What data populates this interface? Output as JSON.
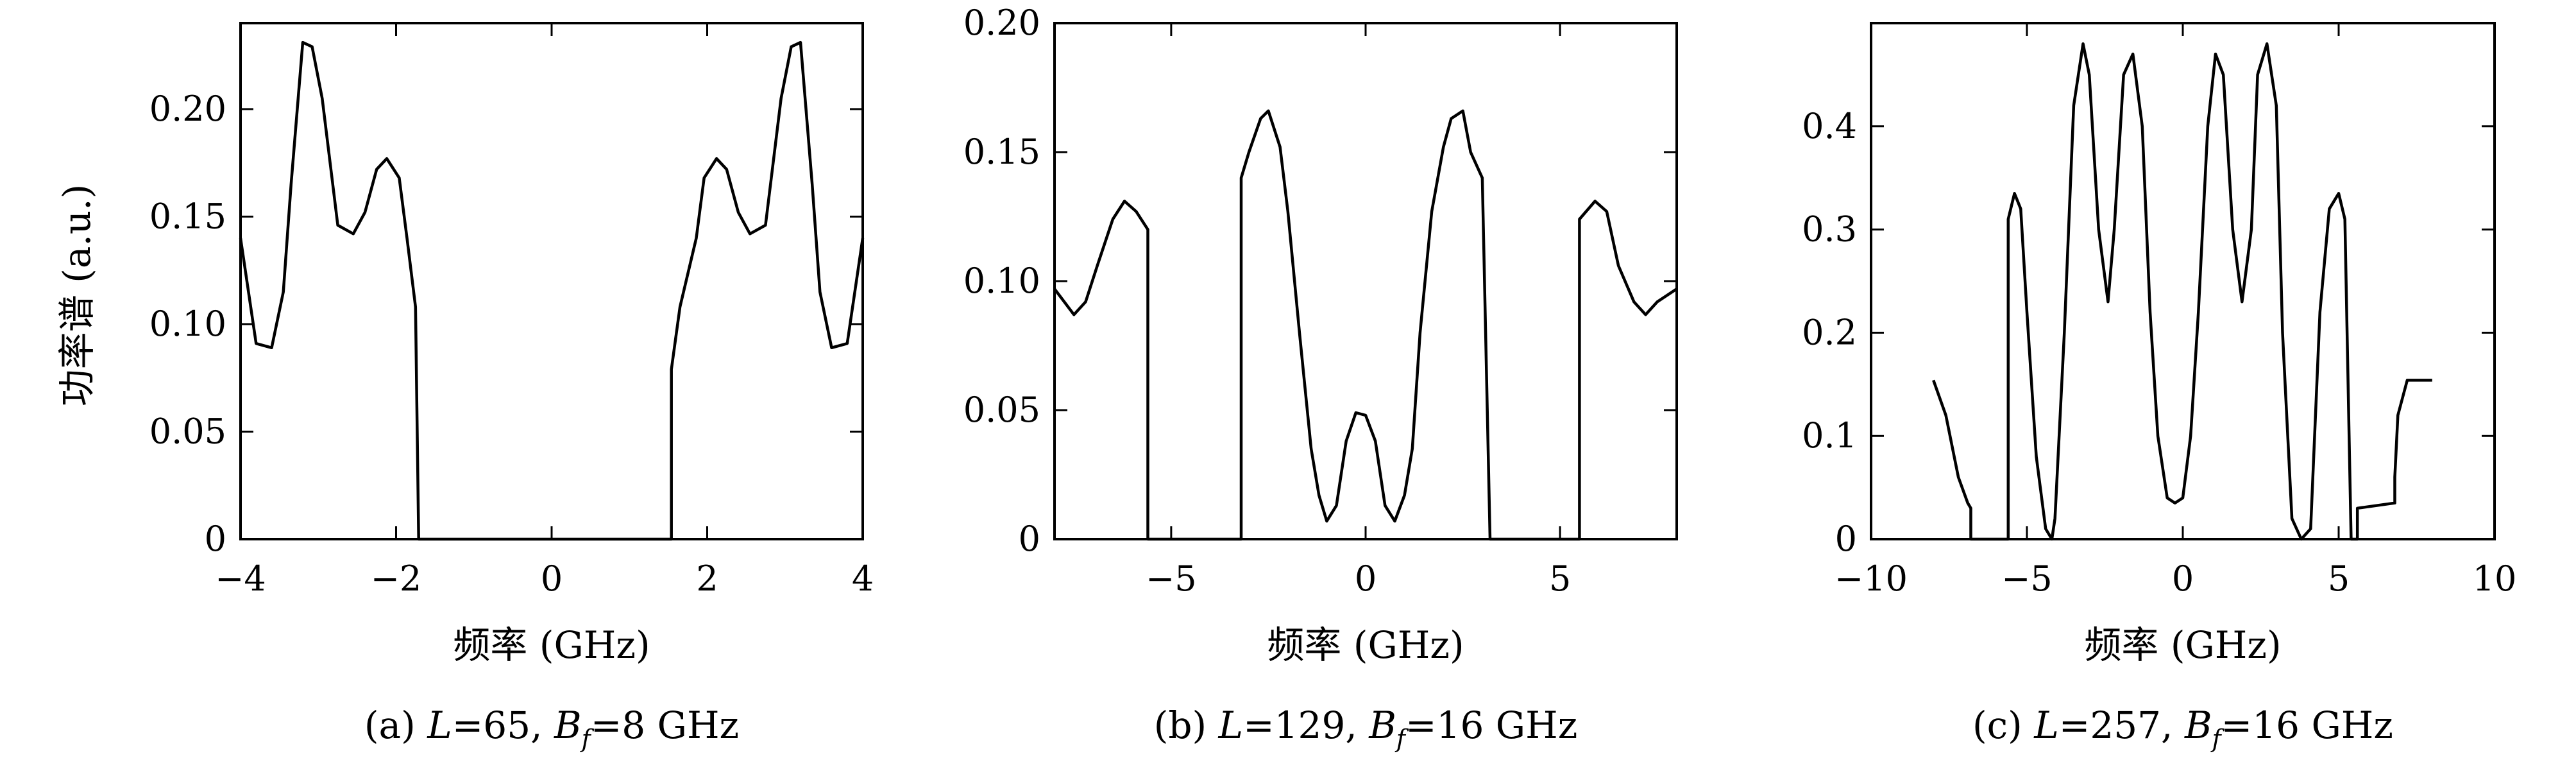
{
  "figure": {
    "ylabel": "功率谱 (a.u.)",
    "xlabel": "频率 (GHz)"
  },
  "chart_data": [
    {
      "type": "line",
      "caption_prefix": "(a) ",
      "caption_L": "L",
      "caption_mid": "=65, ",
      "caption_B": "B",
      "caption_sub": "f",
      "caption_tail": "=8 GHz",
      "xlabel": "频率 (GHz)",
      "ylabel": "功率谱 (a.u.)",
      "xlim": [
        -4,
        4
      ],
      "ylim": [
        0,
        0.24
      ],
      "xticks": [
        -4,
        -2,
        0,
        2,
        4
      ],
      "xtick_labels": [
        "−4",
        "−2",
        "0",
        "2",
        "4"
      ],
      "yticks": [
        0,
        0.05,
        0.1,
        0.15,
        0.2
      ],
      "ytick_labels": [
        "0",
        "0.05",
        "0.10",
        "0.15",
        "0.20"
      ],
      "grid": false,
      "series": [
        {
          "x": [
            -4.0,
            -3.8,
            -3.6,
            -3.45,
            -3.35,
            -3.2,
            -3.08,
            -2.95,
            -2.75,
            -2.55,
            -2.4,
            -2.25,
            -2.12,
            -1.96,
            -1.86,
            -1.75,
            -1.71,
            -1.71,
            1.54,
            1.54,
            1.65,
            1.86,
            1.96,
            2.12,
            2.25,
            2.4,
            2.55,
            2.75,
            2.95,
            3.08,
            3.2,
            3.35,
            3.45,
            3.6,
            3.8,
            4.0
          ],
          "y": [
            0.14,
            0.091,
            0.089,
            0.115,
            0.165,
            0.231,
            0.229,
            0.205,
            0.146,
            0.142,
            0.152,
            0.172,
            0.177,
            0.168,
            0.14,
            0.108,
            0.0,
            0.0,
            0.0,
            0.079,
            0.108,
            0.14,
            0.168,
            0.177,
            0.172,
            0.152,
            0.142,
            0.146,
            0.205,
            0.229,
            0.231,
            0.165,
            0.115,
            0.089,
            0.091,
            0.14
          ]
        }
      ]
    },
    {
      "type": "line",
      "caption_prefix": "(b) ",
      "caption_L": "L",
      "caption_mid": "=129, ",
      "caption_B": "B",
      "caption_sub": "f",
      "caption_tail": "=16 GHz",
      "xlabel": "频率 (GHz)",
      "ylabel": "",
      "xlim": [
        -8,
        8
      ],
      "ylim": [
        0,
        0.2
      ],
      "xticks": [
        -5,
        0,
        5
      ],
      "xtick_labels": [
        "−5",
        "0",
        "5"
      ],
      "yticks": [
        0,
        0.05,
        0.1,
        0.15,
        0.2
      ],
      "ytick_labels": [
        "0",
        "0.05",
        "0.10",
        "0.15",
        "0.20"
      ],
      "grid": false,
      "series": [
        {
          "x": [
            -8.0,
            -7.5,
            -7.2,
            -6.9,
            -6.5,
            -6.2,
            -5.9,
            -5.6,
            -5.6,
            -5.6,
            -3.2,
            -3.2,
            -3.2,
            -3.0,
            -2.7,
            -2.5,
            -2.2,
            -2.0,
            -1.7,
            -1.4,
            -1.2,
            -1.0,
            -0.75,
            -0.5,
            -0.25,
            0.0,
            0.25,
            0.5,
            0.75,
            1.0,
            1.2,
            1.4,
            1.7,
            2.0,
            2.2,
            2.5,
            2.7,
            3.0,
            3.2,
            3.2,
            3.2,
            5.5,
            5.5,
            5.5,
            5.9,
            6.2,
            6.5,
            6.9,
            7.2,
            7.5,
            8.0
          ],
          "y": [
            0.097,
            0.087,
            0.092,
            0.106,
            0.124,
            0.131,
            0.127,
            0.12,
            0.0,
            0.0,
            0.0,
            0.0,
            0.14,
            0.15,
            0.163,
            0.166,
            0.152,
            0.127,
            0.08,
            0.035,
            0.017,
            0.007,
            0.013,
            0.038,
            0.049,
            0.048,
            0.038,
            0.013,
            0.007,
            0.017,
            0.035,
            0.08,
            0.127,
            0.152,
            0.163,
            0.166,
            0.15,
            0.14,
            0.0,
            0.0,
            0.0,
            0.0,
            0.116,
            0.124,
            0.131,
            0.127,
            0.106,
            0.092,
            0.087,
            0.092,
            0.097
          ]
        }
      ]
    },
    {
      "type": "line",
      "caption_prefix": "(c) ",
      "caption_L": "L",
      "caption_mid": "=257, ",
      "caption_B": "B",
      "caption_sub": "f",
      "caption_tail": "=16 GHz",
      "xlabel": "频率 (GHz)",
      "ylabel": "",
      "xlim": [
        -10,
        10
      ],
      "ylim": [
        0,
        0.5
      ],
      "xticks": [
        -10,
        -5,
        0,
        5,
        10
      ],
      "xtick_labels": [
        "−10",
        "−5",
        "0",
        "5",
        "10"
      ],
      "yticks": [
        0,
        0.1,
        0.2,
        0.3,
        0.4
      ],
      "ytick_labels": [
        "0",
        "0.1",
        "0.2",
        "0.3",
        "0.4"
      ],
      "grid": false,
      "series": [
        {
          "x": [
            -8.0,
            -7.6,
            -7.2,
            -6.9,
            -6.8,
            -6.8,
            -5.6,
            -5.6,
            -5.4,
            -5.2,
            -5.0,
            -4.7,
            -4.4,
            -4.2,
            -4.1,
            -3.8,
            -3.5,
            -3.2,
            -3.0,
            -2.7,
            -2.4,
            -2.2,
            -1.9,
            -1.6,
            -1.3,
            -1.05,
            -0.8,
            -0.5,
            -0.25,
            0.0,
            0.25,
            0.5,
            0.8,
            1.05,
            1.3,
            1.6,
            1.9,
            2.2,
            2.4,
            2.7,
            3.0,
            3.2,
            3.5,
            3.8,
            4.1,
            4.2,
            4.4,
            4.7,
            5.0,
            5.2,
            5.4,
            5.6,
            5.6,
            6.8,
            6.8,
            6.9,
            7.2,
            7.6,
            8.0
          ],
          "y": [
            0.154,
            0.12,
            0.06,
            0.035,
            0.03,
            0.0,
            0.0,
            0.31,
            0.335,
            0.32,
            0.22,
            0.08,
            0.01,
            0.0,
            0.02,
            0.2,
            0.42,
            0.48,
            0.45,
            0.3,
            0.23,
            0.3,
            0.45,
            0.47,
            0.4,
            0.22,
            0.1,
            0.04,
            0.035,
            0.04,
            0.1,
            0.22,
            0.4,
            0.47,
            0.45,
            0.3,
            0.23,
            0.3,
            0.45,
            0.48,
            0.42,
            0.2,
            0.02,
            0.0,
            0.01,
            0.08,
            0.22,
            0.32,
            0.335,
            0.31,
            0.0,
            0.0,
            0.03,
            0.035,
            0.06,
            0.12,
            0.154,
            0.154,
            0.154
          ]
        }
      ]
    }
  ]
}
